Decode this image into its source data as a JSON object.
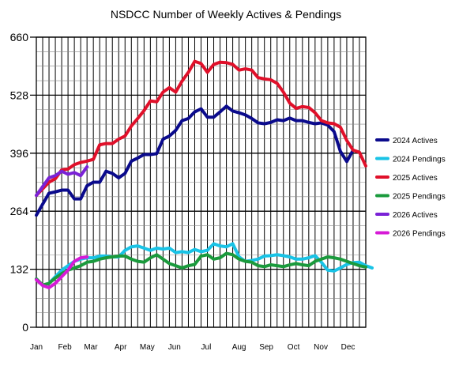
{
  "chart_data": {
    "type": "line",
    "title": "NSDCC Number of Weekly Actives & Pendings",
    "xlabel": "",
    "ylabel": "",
    "ylim": [
      0,
      660
    ],
    "yticks": [
      0,
      132,
      264,
      396,
      528,
      660
    ],
    "xlim": [
      1,
      53
    ],
    "month_labels": [
      {
        "label": "Jan",
        "week": 1
      },
      {
        "label": "Feb",
        "week": 5.5
      },
      {
        "label": "Mar",
        "week": 9.6
      },
      {
        "label": "Apr",
        "week": 14.3
      },
      {
        "label": "May",
        "week": 18.5
      },
      {
        "label": "Jun",
        "week": 22.8
      },
      {
        "label": "Jul",
        "week": 27.8
      },
      {
        "label": "Aug",
        "week": 33
      },
      {
        "label": "Sep",
        "week": 37.3
      },
      {
        "label": "Oct",
        "week": 41.6
      },
      {
        "label": "Nov",
        "week": 45.9
      },
      {
        "label": "Dec",
        "week": 50.2
      }
    ],
    "grid": true,
    "legend_position": "right",
    "series": [
      {
        "name": "2024 Actives",
        "color": "#0a0a8c",
        "values": [
          255,
          280,
          305,
          308,
          312,
          312,
          292,
          292,
          322,
          330,
          330,
          355,
          350,
          340,
          350,
          378,
          385,
          393,
          393,
          395,
          428,
          435,
          448,
          470,
          475,
          490,
          497,
          478,
          478,
          490,
          503,
          492,
          488,
          483,
          475,
          465,
          463,
          466,
          472,
          470,
          476,
          470,
          470,
          466,
          463,
          465,
          460,
          445,
          400,
          377,
          403
        ]
      },
      {
        "name": "2024 Pendings",
        "color": "#19c3e6",
        "values": [
          110,
          95,
          100,
          115,
          130,
          140,
          150,
          155,
          158,
          158,
          162,
          162,
          160,
          160,
          175,
          183,
          185,
          180,
          175,
          180,
          178,
          180,
          170,
          172,
          170,
          177,
          172,
          175,
          190,
          185,
          183,
          190,
          160,
          150,
          152,
          155,
          162,
          163,
          165,
          163,
          160,
          155,
          155,
          158,
          163,
          148,
          130,
          128,
          135,
          143,
          147,
          148,
          140,
          135
        ]
      },
      {
        "name": "2025 Actives",
        "color": "#e0102a",
        "values": [
          300,
          315,
          330,
          338,
          358,
          360,
          370,
          375,
          378,
          382,
          415,
          418,
          418,
          428,
          435,
          458,
          475,
          493,
          515,
          513,
          535,
          545,
          535,
          560,
          580,
          605,
          600,
          580,
          598,
          603,
          602,
          598,
          585,
          588,
          585,
          568,
          565,
          563,
          555,
          535,
          510,
          498,
          502,
          500,
          488,
          470,
          465,
          463,
          455,
          425,
          403,
          398,
          367
        ]
      },
      {
        "name": "2025 Pendings",
        "color": "#1a9a3c",
        "values": [
          110,
          96,
          100,
          112,
          122,
          130,
          135,
          140,
          148,
          150,
          155,
          158,
          160,
          162,
          162,
          155,
          150,
          148,
          158,
          165,
          155,
          145,
          140,
          135,
          140,
          143,
          162,
          165,
          155,
          158,
          168,
          165,
          155,
          150,
          148,
          140,
          138,
          142,
          140,
          138,
          142,
          145,
          142,
          140,
          150,
          155,
          160,
          158,
          155,
          150,
          145,
          140,
          137
        ]
      },
      {
        "name": "2026 Actives",
        "color": "#7a22d6",
        "values": [
          300,
          320,
          340,
          345,
          355,
          348,
          352,
          345,
          365
        ]
      },
      {
        "name": "2026 Pendings",
        "color": "#d61ad6",
        "values": [
          108,
          95,
          90,
          100,
          115,
          130,
          150,
          158,
          160
        ]
      }
    ]
  }
}
